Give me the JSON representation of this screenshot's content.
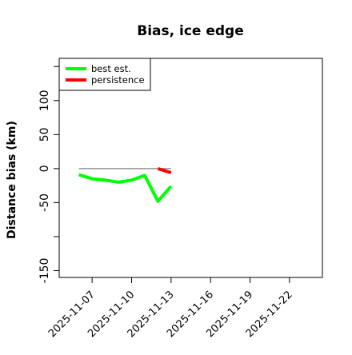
{
  "chart_data": {
    "type": "line",
    "title": "Bias, ice edge",
    "ylabel": "Distance bias (km)",
    "xlabel": "",
    "xlim": [
      "2025-11-04T12:00",
      "2025-11-24T12:00"
    ],
    "ylim": [
      -160,
      162
    ],
    "yticks": [
      -150,
      -50,
      0,
      50,
      100
    ],
    "xticks": [
      "2025-11-07",
      "2025-11-10",
      "2025-11-13",
      "2025-11-16",
      "2025-11-19",
      "2025-11-22"
    ],
    "grid": false,
    "legend_position": "top-left",
    "reference_line": {
      "y": 0,
      "from": "2025-11-06",
      "to": "2025-11-13",
      "color": "#808080"
    },
    "series": [
      {
        "name": "best est.",
        "color": "#00ff00",
        "points": [
          {
            "x": "2025-11-06",
            "y": -9
          },
          {
            "x": "2025-11-07",
            "y": -15
          },
          {
            "x": "2025-11-08",
            "y": -17
          },
          {
            "x": "2025-11-09",
            "y": -20
          },
          {
            "x": "2025-11-10",
            "y": -17
          },
          {
            "x": "2025-11-11",
            "y": -10
          },
          {
            "x": "2025-11-12",
            "y": -48
          },
          {
            "x": "2025-11-13",
            "y": -26
          }
        ]
      },
      {
        "name": "persistence",
        "color": "#ff0000",
        "points": [
          {
            "x": "2025-11-12",
            "y": 0
          },
          {
            "x": "2025-11-13",
            "y": -6
          }
        ]
      }
    ]
  }
}
